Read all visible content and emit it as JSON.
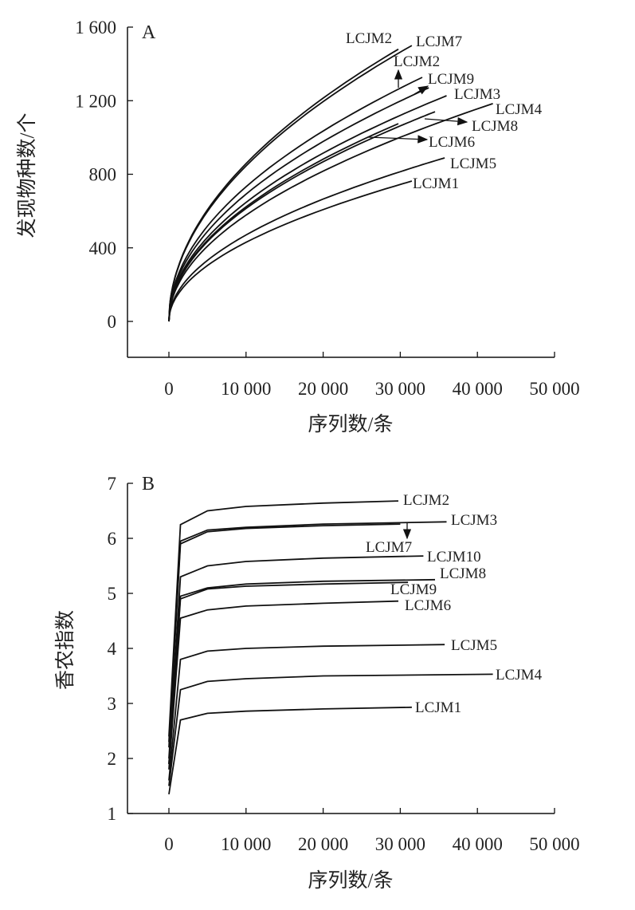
{
  "chart_data": [
    {
      "type": "line",
      "panel": "A",
      "xlabel": "序列数/条",
      "ylabel": "发现物种数/个",
      "xlim": [
        -5000,
        50000
      ],
      "ylim": [
        -150,
        1600
      ],
      "xticks": [
        0,
        10000,
        20000,
        30000,
        40000,
        50000
      ],
      "xtick_labels": [
        "0",
        "10 000",
        "20 000",
        "30 000",
        "40 000",
        "50 000"
      ],
      "yticks": [
        0,
        400,
        800,
        1200,
        1600
      ],
      "ytick_labels": [
        "0",
        "400",
        "800",
        "1 200",
        "1 600"
      ],
      "series": [
        {
          "name": "LCJM2",
          "x": [
            0,
            1000,
            5000,
            10000,
            20000,
            29750
          ],
          "y": [
            0,
            271,
            607,
            858,
            1214,
            1480
          ]
        },
        {
          "name": "LCJM7",
          "x": [
            0,
            1000,
            5000,
            10000,
            20000,
            31500
          ],
          "y": [
            0,
            267,
            598,
            845,
            1195,
            1500
          ]
        },
        {
          "name": "LCJM2",
          "x": [
            0,
            1000,
            5000,
            10000,
            20000,
            32850
          ],
          "y": [
            0,
            232,
            518,
            732,
            1035,
            1327
          ]
        },
        {
          "name": "LCJM9",
          "x": [
            0,
            1000,
            5000,
            10000,
            20000,
            33700
          ],
          "y": [
            0,
            219,
            489,
            692,
            978,
            1270
          ]
        },
        {
          "name": "LCJM3",
          "x": [
            0,
            1000,
            5000,
            10000,
            20000,
            30000,
            36000
          ],
          "y": [
            0,
            205,
            457,
            647,
            915,
            1120,
            1227
          ]
        },
        {
          "name": "LCJM4",
          "x": [
            0,
            1000,
            5000,
            10000,
            20000,
            30000,
            42000
          ],
          "y": [
            0,
            183,
            409,
            578,
            817,
            1001,
            1184
          ]
        },
        {
          "name": "LCJM8",
          "x": [
            0,
            1000,
            5000,
            10000,
            20000,
            30000,
            34500
          ],
          "y": [
            0,
            194,
            434,
            614,
            868,
            1063,
            1140
          ]
        },
        {
          "name": "LCJM6",
          "x": [
            0,
            1000,
            5000,
            10000,
            20000,
            29750
          ],
          "y": [
            0,
            197,
            441,
            623,
            882,
            1075
          ]
        },
        {
          "name": "LCJM5",
          "x": [
            0,
            1000,
            5000,
            10000,
            20000,
            30000,
            35750
          ],
          "y": [
            0,
            149,
            332,
            470,
            665,
            814,
            889
          ]
        },
        {
          "name": "LCJM1",
          "x": [
            0,
            1000,
            5000,
            10000,
            20000,
            31500
          ],
          "y": [
            0,
            136,
            304,
            430,
            608,
            763
          ]
        }
      ]
    },
    {
      "type": "line",
      "panel": "B",
      "xlabel": "序列数/条",
      "ylabel": "香农指数",
      "xlim": [
        -5000,
        50000
      ],
      "ylim": [
        1,
        7
      ],
      "xticks": [
        0,
        10000,
        20000,
        30000,
        40000,
        50000
      ],
      "xtick_labels": [
        "0",
        "10 000",
        "20 000",
        "30 000",
        "40 000",
        "50 000"
      ],
      "yticks": [
        1,
        2,
        3,
        4,
        5,
        6,
        7
      ],
      "ytick_labels": [
        "1",
        "2",
        "3",
        "4",
        "5",
        "6",
        "7"
      ],
      "series": [
        {
          "name": "LCJM2",
          "x": [
            0,
            1500,
            5000,
            10000,
            20000,
            29750
          ],
          "y": [
            2.4,
            6.25,
            6.5,
            6.58,
            6.64,
            6.68
          ]
        },
        {
          "name": "LCJM3",
          "x": [
            0,
            1500,
            5000,
            10000,
            20000,
            36000
          ],
          "y": [
            2.3,
            5.95,
            6.15,
            6.2,
            6.26,
            6.3
          ]
        },
        {
          "name": "LCJM7",
          "x": [
            0,
            1500,
            5000,
            10000,
            20000,
            30000
          ],
          "y": [
            2.2,
            5.9,
            6.12,
            6.18,
            6.23,
            6.26
          ]
        },
        {
          "name": "LCJM10",
          "x": [
            0,
            1500,
            5000,
            10000,
            20000,
            33000
          ],
          "y": [
            2.0,
            5.3,
            5.5,
            5.58,
            5.64,
            5.68
          ]
        },
        {
          "name": "LCJM8",
          "x": [
            0,
            1500,
            5000,
            10000,
            20000,
            34500
          ],
          "y": [
            1.9,
            4.95,
            5.1,
            5.17,
            5.22,
            5.25
          ]
        },
        {
          "name": "LCJM9",
          "x": [
            0,
            1500,
            5000,
            10000,
            20000,
            31000
          ],
          "y": [
            1.9,
            4.9,
            5.08,
            5.13,
            5.17,
            5.2
          ]
        },
        {
          "name": "LCJM6",
          "x": [
            0,
            1500,
            5000,
            10000,
            20000,
            29750
          ],
          "y": [
            1.8,
            4.55,
            4.7,
            4.77,
            4.82,
            4.86
          ]
        },
        {
          "name": "LCJM5",
          "x": [
            0,
            1500,
            5000,
            10000,
            20000,
            35750
          ],
          "y": [
            1.6,
            3.8,
            3.95,
            4.0,
            4.04,
            4.07
          ]
        },
        {
          "name": "LCJM4",
          "x": [
            0,
            1500,
            5000,
            10000,
            20000,
            42000
          ],
          "y": [
            1.5,
            3.25,
            3.4,
            3.45,
            3.5,
            3.53
          ]
        },
        {
          "name": "LCJM1",
          "x": [
            0,
            1500,
            5000,
            10000,
            20000,
            31500
          ],
          "y": [
            1.35,
            2.7,
            2.82,
            2.86,
            2.9,
            2.93
          ]
        }
      ]
    }
  ]
}
